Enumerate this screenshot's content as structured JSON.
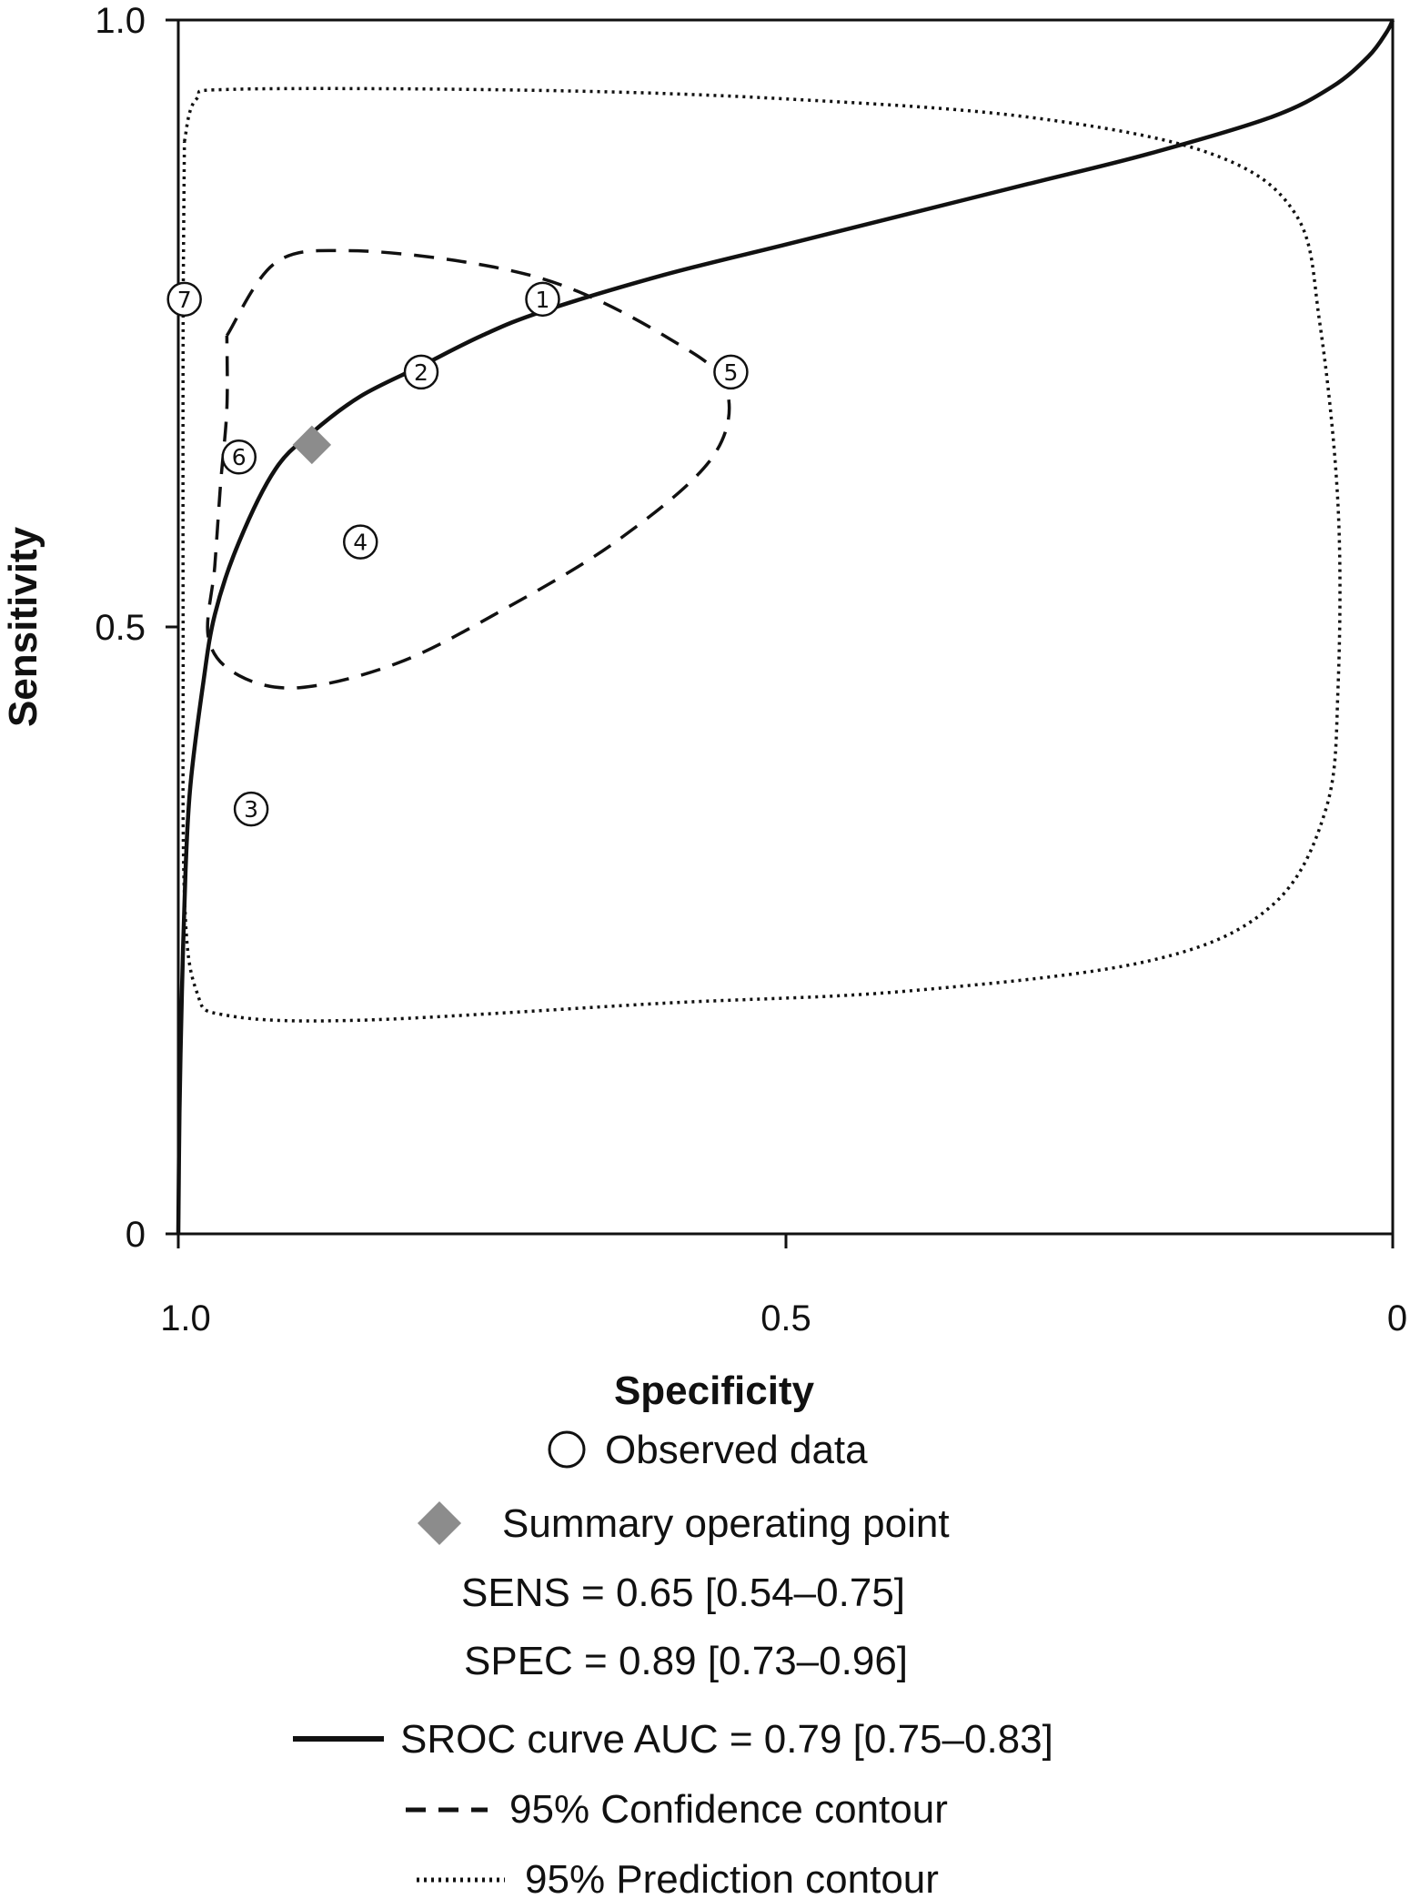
{
  "chart_data": {
    "type": "scatter",
    "xlabel": "Specificity",
    "ylabel": "Sensitivity",
    "xlim": [
      1.0,
      0
    ],
    "ylim": [
      0,
      1.0
    ],
    "x_ticks": [
      "1.0",
      "0.5",
      "0"
    ],
    "y_ticks": [
      "0",
      "0.5",
      "1.0"
    ],
    "grid": false,
    "observed_data": [
      {
        "label": "1",
        "specificity": 0.7,
        "sensitivity": 0.77
      },
      {
        "label": "2",
        "specificity": 0.8,
        "sensitivity": 0.71
      },
      {
        "label": "3",
        "specificity": 0.94,
        "sensitivity": 0.35
      },
      {
        "label": "4",
        "specificity": 0.85,
        "sensitivity": 0.57
      },
      {
        "label": "5",
        "specificity": 0.545,
        "sensitivity": 0.71
      },
      {
        "label": "6",
        "specificity": 0.95,
        "sensitivity": 0.64
      },
      {
        "label": "7",
        "specificity": 0.995,
        "sensitivity": 0.77
      }
    ],
    "summary_point": {
      "specificity": 0.89,
      "sensitivity": 0.65,
      "color": "#8c8c8c"
    },
    "sroc_curve": [
      {
        "x": 1.0,
        "y": 0.0
      },
      {
        "x": 0.999,
        "y": 0.1
      },
      {
        "x": 0.997,
        "y": 0.2
      },
      {
        "x": 0.994,
        "y": 0.3
      },
      {
        "x": 0.99,
        "y": 0.37
      },
      {
        "x": 0.98,
        "y": 0.45
      },
      {
        "x": 0.97,
        "y": 0.51
      },
      {
        "x": 0.95,
        "y": 0.57
      },
      {
        "x": 0.92,
        "y": 0.63
      },
      {
        "x": 0.89,
        "y": 0.66
      },
      {
        "x": 0.85,
        "y": 0.69
      },
      {
        "x": 0.8,
        "y": 0.715
      },
      {
        "x": 0.75,
        "y": 0.74
      },
      {
        "x": 0.7,
        "y": 0.76
      },
      {
        "x": 0.6,
        "y": 0.79
      },
      {
        "x": 0.5,
        "y": 0.815
      },
      {
        "x": 0.4,
        "y": 0.84
      },
      {
        "x": 0.3,
        "y": 0.865
      },
      {
        "x": 0.2,
        "y": 0.89
      },
      {
        "x": 0.1,
        "y": 0.92
      },
      {
        "x": 0.05,
        "y": 0.945
      },
      {
        "x": 0.02,
        "y": 0.97
      },
      {
        "x": 0.005,
        "y": 0.99
      },
      {
        "x": 0.0,
        "y": 1.0
      }
    ],
    "confidence_contour": [
      {
        "x": 0.96,
        "y": 0.74
      },
      {
        "x": 0.92,
        "y": 0.8
      },
      {
        "x": 0.86,
        "y": 0.81
      },
      {
        "x": 0.76,
        "y": 0.8
      },
      {
        "x": 0.68,
        "y": 0.78
      },
      {
        "x": 0.6,
        "y": 0.74
      },
      {
        "x": 0.55,
        "y": 0.7
      },
      {
        "x": 0.56,
        "y": 0.64
      },
      {
        "x": 0.64,
        "y": 0.57
      },
      {
        "x": 0.74,
        "y": 0.51
      },
      {
        "x": 0.82,
        "y": 0.47
      },
      {
        "x": 0.9,
        "y": 0.45
      },
      {
        "x": 0.95,
        "y": 0.46
      },
      {
        "x": 0.975,
        "y": 0.49
      },
      {
        "x": 0.97,
        "y": 0.55
      },
      {
        "x": 0.965,
        "y": 0.62
      },
      {
        "x": 0.96,
        "y": 0.68
      },
      {
        "x": 0.96,
        "y": 0.74
      }
    ],
    "prediction_contour": [
      {
        "x": 0.995,
        "y": 0.9
      },
      {
        "x": 0.985,
        "y": 0.935
      },
      {
        "x": 0.95,
        "y": 0.943
      },
      {
        "x": 0.7,
        "y": 0.942
      },
      {
        "x": 0.5,
        "y": 0.935
      },
      {
        "x": 0.3,
        "y": 0.92
      },
      {
        "x": 0.15,
        "y": 0.89
      },
      {
        "x": 0.08,
        "y": 0.84
      },
      {
        "x": 0.06,
        "y": 0.75
      },
      {
        "x": 0.045,
        "y": 0.6
      },
      {
        "x": 0.045,
        "y": 0.45
      },
      {
        "x": 0.055,
        "y": 0.35
      },
      {
        "x": 0.1,
        "y": 0.27
      },
      {
        "x": 0.2,
        "y": 0.225
      },
      {
        "x": 0.4,
        "y": 0.2
      },
      {
        "x": 0.6,
        "y": 0.19
      },
      {
        "x": 0.85,
        "y": 0.176
      },
      {
        "x": 0.96,
        "y": 0.18
      },
      {
        "x": 0.985,
        "y": 0.2
      },
      {
        "x": 0.995,
        "y": 0.28
      },
      {
        "x": 0.996,
        "y": 0.5
      },
      {
        "x": 0.996,
        "y": 0.75
      },
      {
        "x": 0.995,
        "y": 0.9
      }
    ]
  },
  "legend": {
    "observed": "Observed data",
    "summary": "Summary operating point",
    "sens": "SENS = 0.65 [0.54–0.75]",
    "spec": "SPEC = 0.89 [0.73–0.96]",
    "sroc": "SROC curve AUC = 0.79 [0.75–0.83]",
    "confidence": "95% Confidence contour",
    "prediction": "95% Prediction contour"
  }
}
